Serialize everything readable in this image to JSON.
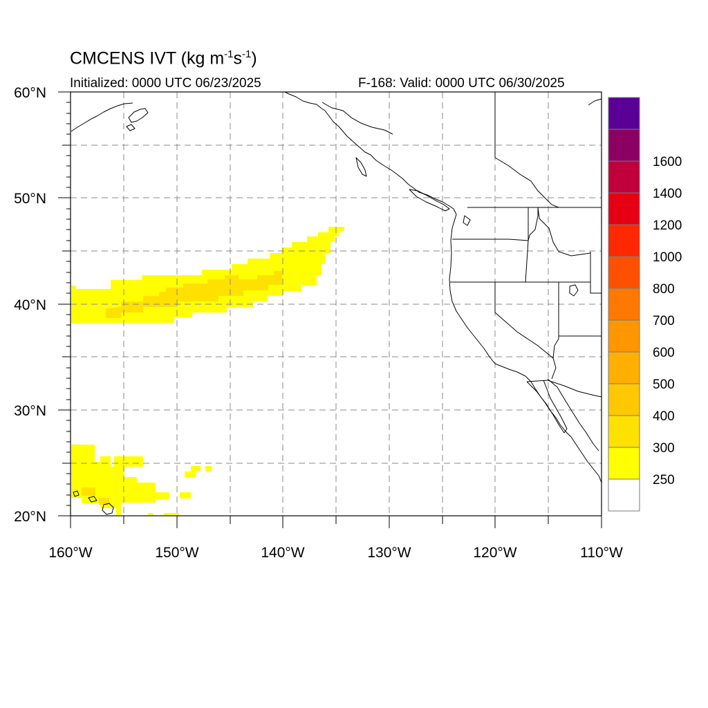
{
  "header": {
    "title_main": "CMCENS IVT (kg m",
    "title_exp1": "-1",
    "title_mid": "s",
    "title_exp2": "-1",
    "title_end": ")",
    "initialized": "Initialized: 0000 UTC 06/23/2025",
    "valid": "F-168: Valid: 0000 UTC 06/30/2025"
  },
  "axes": {
    "lat_labels": [
      "60°N",
      "50°N",
      "40°N",
      "30°N",
      "20°N"
    ],
    "lon_labels": [
      "160°W",
      "150°W",
      "140°W",
      "130°W",
      "120°W",
      "110°W"
    ],
    "lon_range": [
      -160,
      -110
    ],
    "lat_range": [
      20,
      60
    ],
    "grid": "dashed, every 5 degrees"
  },
  "colorbar": {
    "labels": [
      "250",
      "300",
      "400",
      "500",
      "600",
      "700",
      "800",
      "1000",
      "1200",
      "1400",
      "1600"
    ],
    "colors": [
      "#ffffff",
      "#ffff00",
      "#ffe100",
      "#ffc800",
      "#ffaf00",
      "#ff9600",
      "#ff7800",
      "#ff5000",
      "#ff2800",
      "#e60014",
      "#c0003c",
      "#8c0064",
      "#5a0096"
    ]
  },
  "colors": {
    "ivt_250_300": "#ffff00",
    "ivt_300_400": "#ffe100",
    "ivt_400_500": "#ffc800",
    "coast": "#000000",
    "grid": "#888888"
  }
}
